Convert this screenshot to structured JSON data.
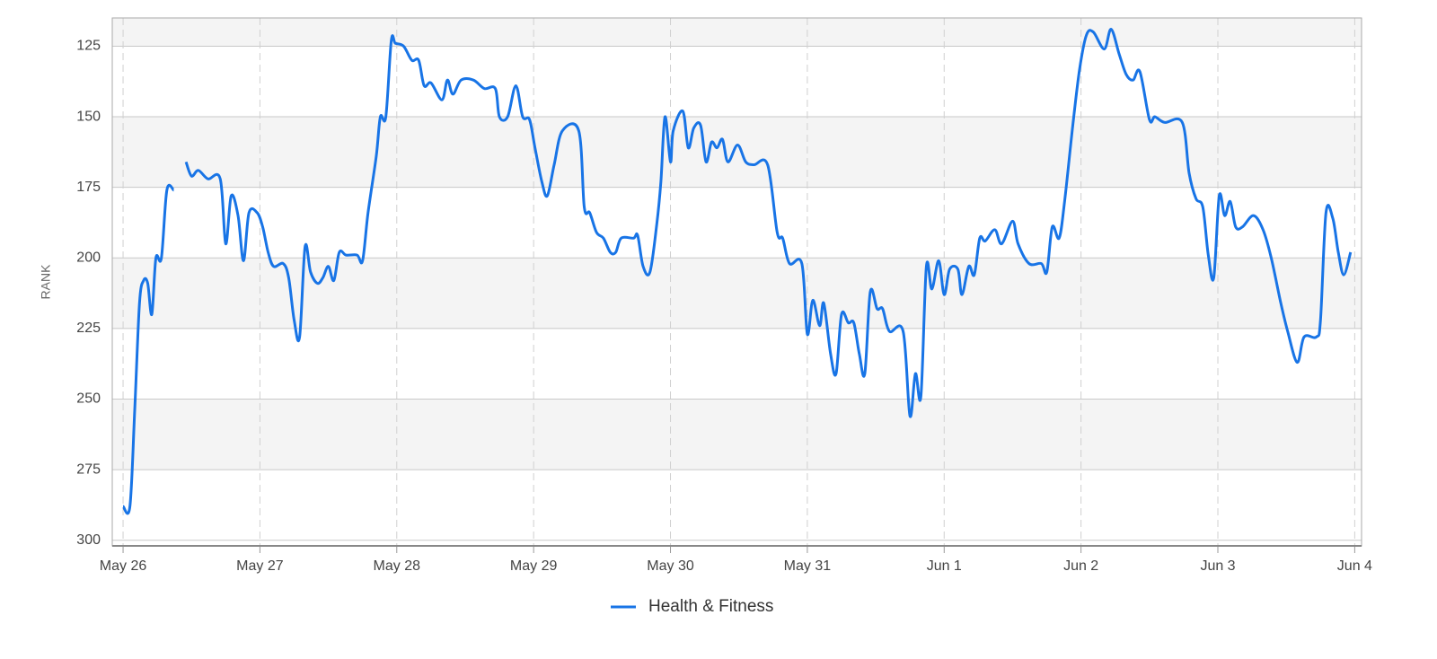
{
  "chart_data": {
    "type": "line",
    "y_axis_label": "RANK",
    "x": [
      0,
      0.05,
      0.085,
      0.12,
      0.15,
      0.18,
      0.21,
      0.24,
      0.28,
      0.32,
      0.37,
      0.41,
      0.46,
      0.5,
      0.55,
      0.62,
      0.71,
      0.75,
      0.79,
      0.84,
      0.88,
      0.92,
      0.98,
      1.02,
      1.06,
      1.1,
      1.17,
      1.21,
      1.25,
      1.29,
      1.33,
      1.37,
      1.42,
      1.46,
      1.5,
      1.54,
      1.58,
      1.63,
      1.71,
      1.75,
      1.79,
      1.85,
      1.88,
      1.92,
      1.96,
      1.99,
      2.05,
      2.11,
      2.16,
      2.2,
      2.25,
      2.33,
      2.37,
      2.41,
      2.47,
      2.56,
      2.64,
      2.72,
      2.75,
      2.81,
      2.87,
      2.92,
      2.97,
      3.01,
      3.06,
      3.1,
      3.15,
      3.21,
      3.33,
      3.37,
      3.41,
      3.46,
      3.51,
      3.56,
      3.6,
      3.64,
      3.73,
      3.76,
      3.8,
      3.85,
      3.9,
      3.93,
      3.96,
      4,
      4.02,
      4.09,
      4.13,
      4.17,
      4.22,
      4.26,
      4.3,
      4.34,
      4.38,
      4.42,
      4.49,
      4.55,
      4.61,
      4.71,
      4.78,
      4.82,
      4.87,
      4.96,
      5,
      5.04,
      5.09,
      5.12,
      5.17,
      5.21,
      5.25,
      5.3,
      5.34,
      5.38,
      5.42,
      5.46,
      5.51,
      5.55,
      5.6,
      5.7,
      5.75,
      5.79,
      5.83,
      5.87,
      5.91,
      5.96,
      6,
      6.04,
      6.1,
      6.13,
      6.18,
      6.22,
      6.26,
      6.3,
      6.37,
      6.42,
      6.5,
      6.54,
      6.62,
      6.71,
      6.75,
      6.79,
      6.84,
      6.88,
      6.94,
      6.99,
      7.04,
      7.09,
      7.17,
      7.22,
      7.28,
      7.33,
      7.38,
      7.43,
      7.5,
      7.54,
      7.61,
      7.74,
      7.79,
      7.84,
      7.89,
      7.93,
      7.97,
      8.01,
      8.05,
      8.09,
      8.13,
      8.18,
      8.26,
      8.33,
      8.39,
      8.46,
      8.51,
      8.58,
      8.63,
      8.72,
      8.75,
      8.79,
      8.84,
      8.88,
      8.92,
      8.97
    ],
    "series": [
      {
        "name": "Health & Fitness",
        "color": "#1874e6",
        "values": [
          288,
          288,
          254,
          216,
          208,
          209,
          220,
          200,
          200,
          176,
          176,
          null,
          166,
          171,
          169,
          172,
          172,
          195,
          178,
          185,
          201,
          184,
          184,
          189,
          198,
          203,
          202,
          207,
          222,
          228,
          196,
          205,
          209,
          207,
          203,
          208,
          198,
          199,
          199,
          201,
          184,
          164,
          150,
          150,
          123,
          124,
          125,
          130,
          130,
          139,
          138,
          144,
          137,
          142,
          137,
          137,
          140,
          140,
          150,
          150,
          139,
          150,
          151,
          161,
          173,
          178,
          167,
          155,
          155,
          182,
          184,
          191,
          193,
          198,
          198,
          193,
          193,
          192,
          203,
          205,
          188,
          173,
          150,
          166,
          155,
          148,
          161,
          154,
          153,
          166,
          159,
          161,
          158,
          166,
          160,
          166,
          167,
          167,
          191,
          193,
          202,
          202,
          227,
          215,
          224,
          216,
          234,
          241,
          220,
          223,
          223,
          234,
          241,
          212,
          218,
          218,
          226,
          226,
          256,
          241,
          249,
          203,
          211,
          201,
          213,
          204,
          204,
          213,
          203,
          206,
          193,
          194,
          190,
          195,
          187,
          195,
          202,
          202,
          205,
          189,
          193,
          180,
          153,
          133,
          121,
          120,
          126,
          119,
          128,
          135,
          137,
          134,
          151,
          150,
          152,
          152,
          170,
          179,
          182,
          199,
          207,
          178,
          185,
          180,
          189,
          189,
          185,
          190,
          200,
          216,
          226,
          237,
          228,
          228,
          222,
          184,
          186,
          198,
          206,
          198
        ]
      }
    ],
    "xlim": [
      -0.079,
      9.05
    ],
    "xticks": [
      {
        "value": 0,
        "label": "May 26"
      },
      {
        "value": 1,
        "label": "May 27"
      },
      {
        "value": 2,
        "label": "May 28"
      },
      {
        "value": 3,
        "label": "May 29"
      },
      {
        "value": 4,
        "label": "May 30"
      },
      {
        "value": 5,
        "label": "May 31"
      },
      {
        "value": 6,
        "label": "Jun 1"
      },
      {
        "value": 7,
        "label": "Jun 2"
      },
      {
        "value": 8,
        "label": "Jun 3"
      },
      {
        "value": 9,
        "label": "Jun 4"
      }
    ],
    "ylim": [
      302,
      115
    ],
    "yticks": [
      125,
      150,
      175,
      200,
      225,
      250,
      275,
      300
    ],
    "grid": true,
    "legend": "bottom"
  }
}
